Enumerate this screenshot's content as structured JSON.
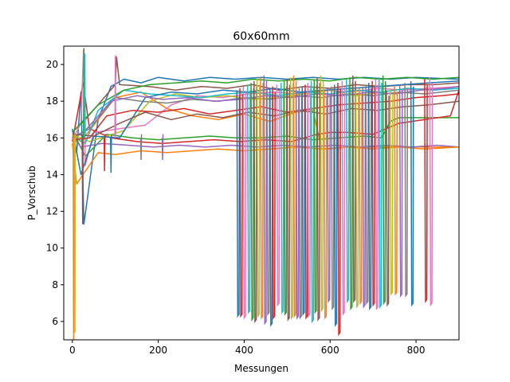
{
  "chart_data": {
    "type": "line",
    "title": "60x60mm",
    "xlabel": "Messungen",
    "ylabel": "P_Vorschub",
    "xlim": [
      -20,
      900
    ],
    "ylim": [
      5,
      21
    ],
    "x_ticks": [
      0,
      200,
      400,
      600,
      800
    ],
    "y_ticks": [
      6,
      8,
      10,
      12,
      14,
      16,
      18,
      20
    ],
    "grid": false,
    "legend": "none",
    "colors": [
      "#1f77b4",
      "#ff7f0e",
      "#2ca02c",
      "#d62728",
      "#9467bd",
      "#8c564b",
      "#e377c2",
      "#7f7f7f",
      "#bcbd22",
      "#17becf"
    ],
    "series": [
      {
        "x": [
          0,
          10,
          20,
          27,
          60,
          90,
          120,
          160,
          200,
          260,
          320,
          380,
          440,
          500,
          560,
          620,
          680,
          740,
          800,
          900
        ],
        "y": [
          16.0,
          15.2,
          18.5,
          11.3,
          17.0,
          18.8,
          19.2,
          19.0,
          19.3,
          19.1,
          19.3,
          19.2,
          19.3,
          19.2,
          19.3,
          19.2,
          19.3,
          19.2,
          19.3,
          19.2
        ]
      },
      {
        "x": [
          0,
          20,
          60,
          100,
          160,
          220,
          280,
          340,
          400,
          460,
          520,
          560,
          580,
          600,
          640,
          700,
          760,
          820,
          900
        ],
        "y": [
          16.2,
          15.8,
          17.0,
          18.2,
          18.5,
          17.6,
          17.2,
          17.0,
          17.3,
          16.9,
          17.4,
          17.5,
          15.4,
          15.4,
          15.5,
          15.5,
          15.5,
          15.5,
          15.5
        ]
      },
      {
        "x": [
          0,
          30,
          80,
          140,
          200,
          260,
          320,
          380,
          440,
          500,
          560,
          620,
          680,
          720,
          740,
          760,
          780,
          840,
          900
        ],
        "y": [
          16.4,
          15.0,
          16.2,
          16.0,
          15.9,
          16.0,
          16.1,
          16.0,
          16.0,
          16.1,
          15.9,
          16.0,
          16.1,
          16.0,
          16.9,
          17.1,
          17.1,
          17.1,
          17.1
        ]
      },
      {
        "x": [
          0,
          25,
          40,
          90,
          150,
          210,
          270,
          330,
          390,
          450,
          510,
          570,
          600,
          640,
          700,
          760,
          820,
          880,
          900
        ],
        "y": [
          15.8,
          19.0,
          16.5,
          16.0,
          15.8,
          15.7,
          15.8,
          15.9,
          15.8,
          15.9,
          15.8,
          16.2,
          16.3,
          16.3,
          16.2,
          16.8,
          17.0,
          17.2,
          18.6
        ]
      },
      {
        "x": [
          0,
          20,
          70,
          130,
          190,
          250,
          310,
          370,
          430,
          490,
          550,
          610,
          670,
          730,
          790,
          850,
          900
        ],
        "y": [
          16.1,
          15.5,
          15.7,
          15.6,
          15.5,
          15.6,
          15.5,
          15.6,
          15.5,
          15.6,
          15.5,
          15.6,
          15.5,
          15.6,
          15.5,
          15.6,
          15.5
        ]
      },
      {
        "x": [
          0,
          30,
          100,
          103,
          110,
          180,
          240,
          300,
          360,
          420,
          480,
          540,
          600,
          660,
          720,
          780,
          840,
          900
        ],
        "y": [
          16.3,
          17.0,
          18.9,
          20.4,
          18.9,
          18.8,
          18.6,
          18.8,
          18.7,
          18.9,
          18.6,
          18.8,
          18.7,
          18.9,
          18.8,
          18.9,
          18.9,
          19.0
        ]
      },
      {
        "x": [
          0,
          20,
          26,
          30,
          50,
          110,
          170,
          230,
          290,
          350,
          410,
          470,
          530,
          590,
          650,
          710,
          770,
          830,
          900
        ],
        "y": [
          15.9,
          16.8,
          20.8,
          14.5,
          16.3,
          16.5,
          16.7,
          17.8,
          18.3,
          18.2,
          18.4,
          18.5,
          18.4,
          18.6,
          18.5,
          18.7,
          18.6,
          18.7,
          18.8
        ]
      },
      {
        "x": [
          0,
          40,
          100,
          160,
          220,
          280,
          340,
          400,
          460,
          520,
          580,
          640,
          700,
          760,
          820,
          900
        ],
        "y": [
          16.0,
          16.5,
          18.2,
          18.0,
          17.9,
          18.1,
          18.0,
          18.2,
          18.1,
          18.3,
          18.2,
          18.4,
          18.3,
          18.5,
          18.4,
          18.6
        ]
      },
      {
        "x": [
          0,
          40,
          120,
          180,
          240,
          300,
          360,
          420,
          480,
          540,
          600,
          660,
          720,
          780,
          840,
          900
        ],
        "y": [
          16.2,
          15.8,
          16.4,
          18.0,
          18.4,
          18.2,
          18.3,
          18.1,
          18.2,
          18.4,
          18.6,
          18.3,
          18.5,
          18.7,
          18.6,
          18.8
        ]
      },
      {
        "x": [
          0,
          30,
          60,
          120,
          180,
          240,
          300,
          360,
          420,
          480,
          540,
          600,
          660,
          720,
          780,
          840,
          900
        ],
        "y": [
          16.1,
          15.7,
          17.5,
          18.6,
          18.4,
          18.3,
          18.2,
          18.4,
          18.5,
          18.3,
          18.5,
          18.4,
          18.6,
          18.5,
          18.7,
          18.6,
          18.7
        ]
      },
      {
        "x": [
          0,
          20,
          50,
          110,
          170,
          230,
          290,
          350,
          410,
          470,
          530,
          590,
          650,
          710,
          770,
          830,
          900
        ],
        "y": [
          16.5,
          14.0,
          16.1,
          16.0,
          18.2,
          18.5,
          18.4,
          18.6,
          18.5,
          18.7,
          18.5,
          18.6,
          18.7,
          18.8,
          18.9,
          19.0,
          19.1
        ]
      },
      {
        "x": [
          0,
          10,
          60,
          100,
          160,
          220,
          280,
          340,
          400,
          460,
          520,
          580,
          640,
          700,
          760,
          820,
          900
        ],
        "y": [
          15.7,
          13.5,
          15.2,
          15.1,
          15.3,
          15.2,
          15.3,
          15.4,
          15.3,
          15.4,
          15.5,
          15.4,
          15.5,
          15.4,
          15.5,
          15.4,
          15.5
        ]
      },
      {
        "x": [
          0,
          60,
          120,
          180,
          240,
          300,
          360,
          420,
          480,
          540,
          600,
          660,
          720,
          780,
          840,
          900
        ],
        "y": [
          16.3,
          17.8,
          18.6,
          18.9,
          19.0,
          19.1,
          19.0,
          19.2,
          19.1,
          19.2,
          19.1,
          19.3,
          19.2,
          19.3,
          19.2,
          19.3
        ]
      },
      {
        "x": [
          0,
          40,
          80,
          140,
          200,
          260,
          320,
          380,
          440,
          500,
          560,
          620,
          680,
          740,
          800,
          860,
          900
        ],
        "y": [
          15.9,
          16.0,
          17.2,
          17.5,
          17.4,
          17.6,
          17.3,
          17.5,
          17.7,
          17.4,
          17.6,
          17.8,
          17.9,
          18.0,
          18.2,
          18.3,
          18.4
        ]
      },
      {
        "x": [
          0,
          30,
          90,
          150,
          210,
          270,
          330,
          390,
          450,
          510,
          570,
          630,
          690,
          750,
          810,
          870,
          900
        ],
        "y": [
          16.0,
          16.4,
          18.0,
          18.3,
          18.1,
          18.2,
          18.0,
          18.1,
          18.3,
          18.2,
          18.4,
          18.3,
          18.5,
          18.4,
          18.6,
          18.7,
          18.8
        ]
      },
      {
        "x": [
          0,
          50,
          110,
          170,
          230,
          290,
          350,
          410,
          470,
          530,
          590,
          650,
          710,
          770,
          830,
          900
        ],
        "y": [
          16.2,
          16.1,
          16.8,
          17.4,
          17.0,
          17.3,
          17.1,
          17.4,
          17.2,
          17.5,
          17.3,
          17.6,
          17.5,
          17.7,
          17.8,
          18.0
        ]
      }
    ],
    "drops": [
      {
        "x": 385,
        "low": 6.3
      },
      {
        "x": 392,
        "low": 6.3
      },
      {
        "x": 400,
        "low": 6.2
      },
      {
        "x": 410,
        "low": 6.5
      },
      {
        "x": 418,
        "low": 6.1
      },
      {
        "x": 425,
        "low": 6.0
      },
      {
        "x": 432,
        "low": 6.3
      },
      {
        "x": 440,
        "low": 6.2
      },
      {
        "x": 448,
        "low": 5.9
      },
      {
        "x": 455,
        "low": 6.4
      },
      {
        "x": 462,
        "low": 5.8
      },
      {
        "x": 468,
        "low": 6.2
      },
      {
        "x": 478,
        "low": 6.9
      },
      {
        "x": 488,
        "low": 6.5
      },
      {
        "x": 495,
        "low": 6.4
      },
      {
        "x": 502,
        "low": 6.1
      },
      {
        "x": 510,
        "low": 6.2
      },
      {
        "x": 517,
        "low": 6.3
      },
      {
        "x": 523,
        "low": 6.2
      },
      {
        "x": 530,
        "low": 6.2
      },
      {
        "x": 537,
        "low": 6.4
      },
      {
        "x": 544,
        "low": 6.2
      },
      {
        "x": 550,
        "low": 6.3
      },
      {
        "x": 558,
        "low": 6.0
      },
      {
        "x": 565,
        "low": 6.5
      },
      {
        "x": 572,
        "low": 6.1
      },
      {
        "x": 580,
        "low": 6.6
      },
      {
        "x": 588,
        "low": 6.2
      },
      {
        "x": 596,
        "low": 7.1
      },
      {
        "x": 605,
        "low": 6.7
      },
      {
        "x": 612,
        "low": 5.8
      },
      {
        "x": 620,
        "low": 5.3
      },
      {
        "x": 630,
        "low": 6.4
      },
      {
        "x": 640,
        "low": 7.1
      },
      {
        "x": 648,
        "low": 6.7
      },
      {
        "x": 655,
        "low": 7.1
      },
      {
        "x": 662,
        "low": 6.8
      },
      {
        "x": 670,
        "low": 7.0
      },
      {
        "x": 678,
        "low": 6.8
      },
      {
        "x": 685,
        "low": 7.0
      },
      {
        "x": 692,
        "low": 6.7
      },
      {
        "x": 700,
        "low": 6.9
      },
      {
        "x": 708,
        "low": 6.7
      },
      {
        "x": 716,
        "low": 6.8
      },
      {
        "x": 725,
        "low": 7.0
      },
      {
        "x": 733,
        "low": 6.9
      },
      {
        "x": 742,
        "low": 7.5
      },
      {
        "x": 752,
        "low": 7.5
      },
      {
        "x": 764,
        "low": 7.4
      },
      {
        "x": 776,
        "low": 7.4
      },
      {
        "x": 790,
        "low": 6.9
      },
      {
        "x": 822,
        "low": 7.1
      },
      {
        "x": 834,
        "low": 6.9
      }
    ],
    "spikes": [
      {
        "x": 3,
        "low": 5.0
      },
      {
        "x": 6,
        "low": 5.4
      },
      {
        "x": 24,
        "low": 11.3
      },
      {
        "x": 27,
        "high": 20.9
      },
      {
        "x": 29,
        "high": 20.6
      },
      {
        "x": 100,
        "high": 20.5
      },
      {
        "x": 75,
        "low": 14.2
      },
      {
        "x": 90,
        "low": 14.1
      },
      {
        "x": 160,
        "low": 14.8
      },
      {
        "x": 210,
        "low": 14.8
      }
    ]
  }
}
